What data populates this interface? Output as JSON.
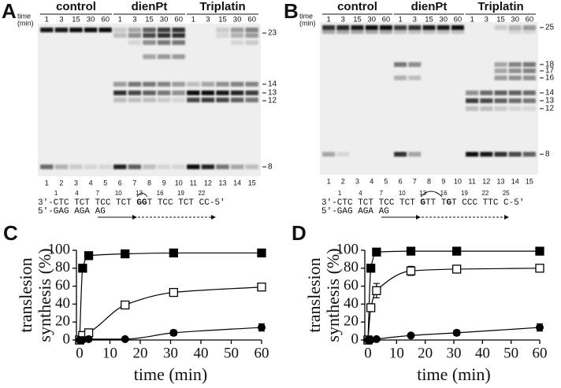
{
  "panels": [
    {
      "letter": "A",
      "time_label": [
        "time",
        "(min)"
      ],
      "groups": [
        "control",
        "dienPt",
        "Triplatin"
      ],
      "times": [
        1,
        3,
        15,
        30,
        60
      ],
      "lanes": [
        1,
        2,
        3,
        4,
        5,
        6,
        7,
        8,
        9,
        10,
        11,
        12,
        13,
        14,
        15
      ],
      "markers": [
        23,
        14,
        13,
        12,
        8
      ],
      "positions": [
        1,
        4,
        7,
        10,
        13,
        16,
        19,
        22
      ],
      "template": [
        "3'-CTC TCT TCC TCT ",
        "GG",
        "T TCC TCT CC-5'"
      ],
      "primer": "5'-GAG AGA AG"
    },
    {
      "letter": "B",
      "time_label": [
        "time",
        "(min)"
      ],
      "groups": [
        "control",
        "dienPt",
        "Triplatin"
      ],
      "times": [
        1,
        3,
        15,
        30,
        60
      ],
      "lanes": [
        1,
        2,
        3,
        4,
        5,
        6,
        7,
        8,
        9,
        10,
        11,
        12,
        13,
        14,
        15
      ],
      "markers": [
        25,
        18,
        17,
        16,
        14,
        13,
        12,
        8
      ],
      "positions": [
        1,
        4,
        7,
        10,
        13,
        16,
        19,
        22,
        25
      ],
      "template": [
        "3'-CTC TCT TCC TCT ",
        "G",
        "TT T",
        "G",
        "T CCC TTC C-5'"
      ],
      "primer": "5'-GAG AGA AG"
    }
  ],
  "chart_data": [
    {
      "type": "scatter",
      "label": "C",
      "xlabel": "time (min)",
      "ylabel": [
        "translesion",
        "synthesis (%)"
      ],
      "xlim": [
        0,
        60
      ],
      "ylim": [
        0,
        100
      ],
      "xticks": [
        0,
        10,
        20,
        30,
        40,
        50,
        60
      ],
      "yticks": [
        0,
        20,
        40,
        60,
        80,
        100
      ],
      "series": [
        {
          "marker": "square",
          "color": "#000000",
          "x": [
            0,
            1,
            3,
            15,
            31,
            60
          ],
          "values": [
            0,
            80,
            94,
            96,
            97,
            97
          ],
          "errors": [
            null,
            null,
            4,
            null,
            null,
            null
          ]
        },
        {
          "marker": "square-open",
          "color": "#000000",
          "x": [
            0,
            1,
            3,
            15,
            31,
            60
          ],
          "values": [
            0,
            5,
            8,
            39,
            53,
            59
          ],
          "errors": [
            null,
            null,
            null,
            null,
            4,
            4
          ]
        },
        {
          "marker": "circle",
          "color": "#000000",
          "x": [
            0,
            1,
            3,
            15,
            31,
            60
          ],
          "values": [
            0,
            0,
            1,
            1,
            8,
            14
          ],
          "errors": [
            null,
            null,
            null,
            null,
            3,
            4
          ]
        }
      ]
    },
    {
      "type": "scatter",
      "label": "D",
      "xlabel": "time (min)",
      "ylabel": [
        "translesion",
        "synthesis (%)"
      ],
      "xlim": [
        0,
        60
      ],
      "ylim": [
        0,
        100
      ],
      "xticks": [
        0,
        10,
        20,
        30,
        40,
        50,
        60
      ],
      "yticks": [
        0,
        20,
        40,
        60,
        80,
        100
      ],
      "series": [
        {
          "marker": "square",
          "color": "#000000",
          "x": [
            0,
            1,
            3,
            15,
            31,
            60
          ],
          "values": [
            0,
            80,
            98,
            99,
            99,
            99
          ],
          "errors": [
            null,
            null,
            null,
            null,
            null,
            null
          ]
        },
        {
          "marker": "square-open",
          "color": "#000000",
          "x": [
            0,
            1,
            3,
            15,
            31,
            60
          ],
          "values": [
            0,
            36,
            55,
            77,
            79,
            80
          ],
          "errors": [
            null,
            null,
            8,
            5,
            null,
            null
          ]
        },
        {
          "marker": "circle",
          "color": "#000000",
          "x": [
            0,
            1,
            3,
            15,
            31,
            60
          ],
          "values": [
            0,
            0,
            1,
            5,
            8,
            14
          ],
          "errors": [
            null,
            null,
            null,
            null,
            3,
            4
          ]
        }
      ]
    }
  ]
}
